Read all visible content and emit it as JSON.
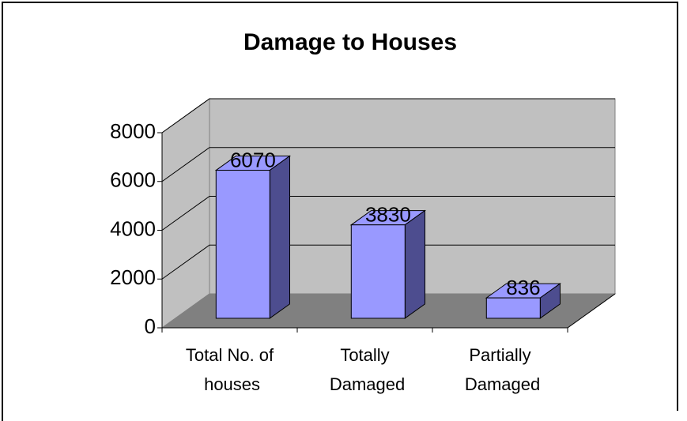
{
  "chart_data": {
    "type": "bar3d",
    "title": "Damage to Houses",
    "categories": [
      "Total No. of houses",
      "Totally Damaged",
      "Partially Damaged"
    ],
    "values": [
      6070,
      3830,
      836
    ],
    "color": "#9999ff",
    "ylim": [
      0,
      8000
    ],
    "yticks": [
      0,
      2000,
      4000,
      6000,
      8000
    ],
    "grid": true
  }
}
